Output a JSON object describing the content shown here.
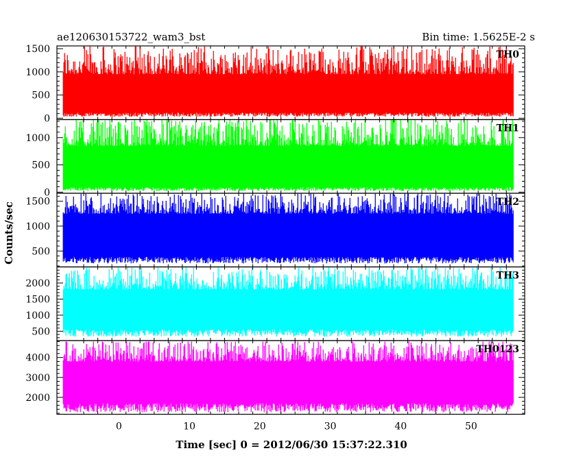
{
  "header": {
    "title": "ae120630153722_wam3_bst",
    "bin_time": "Bin time: 1.5625E-2 s"
  },
  "chart_data": {
    "type": "line",
    "xlabel": "Time [sec] 0 = 2012/06/30 15:37:22.310",
    "ylabel": "Counts/sec",
    "xlim": [
      -8.8,
      57.6
    ],
    "x_range": [
      -7.9,
      56.0
    ],
    "x_ticks": [
      0,
      10,
      20,
      30,
      40,
      50
    ],
    "grid": false,
    "panels": [
      {
        "name": "TH0",
        "color": "#ff0000",
        "ylim": [
          -30,
          1560
        ],
        "ticks": [
          0,
          500,
          1000,
          1500
        ],
        "low": 30,
        "base_lo": 120,
        "base_hi": 950,
        "peak": 1550
      },
      {
        "name": "TH1",
        "color": "#00ff00",
        "ylim": [
          -20,
          1330
        ],
        "ticks": [
          0,
          500,
          1000
        ],
        "low": 20,
        "base_lo": 90,
        "base_hi": 850,
        "peak": 1330
      },
      {
        "name": "TH2",
        "color": "#0000ff",
        "ylim": [
          180,
          1660
        ],
        "ticks": [
          500,
          1000,
          1500
        ],
        "low": 250,
        "base_lo": 380,
        "base_hi": 1250,
        "peak": 1650
      },
      {
        "name": "TH3",
        "color": "#00ffff",
        "ylim": [
          210,
          2500
        ],
        "ticks": [
          500,
          1000,
          1500,
          2000
        ],
        "low": 330,
        "base_lo": 560,
        "base_hi": 1800,
        "peak": 2480
      },
      {
        "name": "TH0123",
        "color": "#ff00ff",
        "ylim": [
          1150,
          4850
        ],
        "ticks": [
          2000,
          3000,
          4000
        ],
        "low": 1250,
        "base_lo": 1700,
        "base_hi": 3800,
        "peak": 4800
      }
    ]
  }
}
